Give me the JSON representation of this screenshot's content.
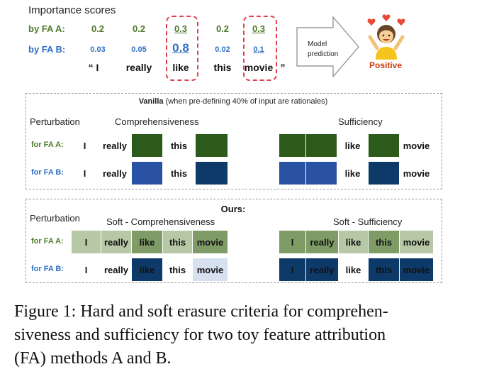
{
  "header": {
    "title": "Importance scores"
  },
  "fa_a_label": "by FA  A:",
  "fa_b_label": "by FA  B:",
  "scores_a": [
    "0.2",
    "0.2",
    "0.3",
    "0.2",
    "0.3"
  ],
  "scores_b": [
    "0.03",
    "0.05",
    "0.8",
    "0.02",
    "0.1"
  ],
  "words": [
    "“ I",
    "really",
    "like",
    "this",
    "movie",
    "”"
  ],
  "model": {
    "line1": "Model",
    "line2": "prediction",
    "result": "Positive"
  },
  "vanilla": {
    "title_bold": "Vanilla",
    "title_rest": " (when pre-defining 40% of input are rationales)",
    "perturbation": "Perturbation",
    "comp": "Comprehensiveness",
    "suff": "Sufficiency",
    "fa_a": "for FA  A:",
    "fa_b": "for FA  B:"
  },
  "ours": {
    "title": "Ours:",
    "perturbation": "Perturbation",
    "comp": "Soft - Comprehensiveness",
    "suff": "Soft - Sufficiency",
    "fa_a": "for FA  A:",
    "fa_b": "for FA  B:"
  },
  "tokens": [
    "I",
    "really",
    "like",
    "this",
    "movie"
  ],
  "colors": {
    "green_dark": "#2b5a1a",
    "blue_dark": "#0d3a68",
    "blue_mid": "#2a52a4",
    "highlight": "#e0414d",
    "positive": "#d03a0e"
  },
  "caption": "Figure 1: Hard and soft erasure criteria for comprehensiveness and sufficiency for two toy feature attribution (FA) methods A and B.",
  "caption_lines": [
    "Figure 1: Hard and soft erasure criteria for comprehen-",
    "siveness and sufficiency for two toy feature attribution",
    "(FA) methods A and B."
  ]
}
